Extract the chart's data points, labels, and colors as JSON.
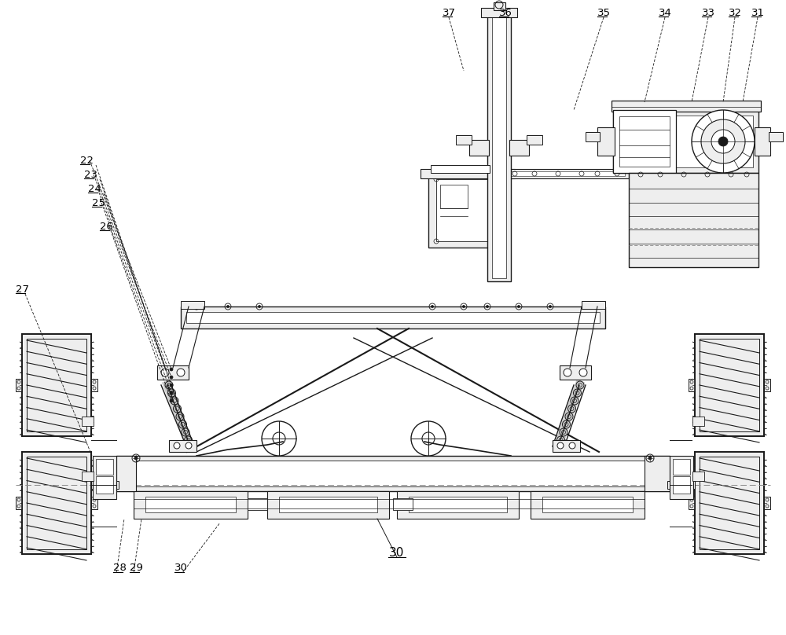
{
  "bg_color": "#ffffff",
  "line_color": "#1a1a1a",
  "figsize": [
    10.0,
    8.08
  ],
  "dpi": 100,
  "orange_color": "#cc6600",
  "gray_fill": "#d8d8d8",
  "light_gray": "#eeeeee"
}
